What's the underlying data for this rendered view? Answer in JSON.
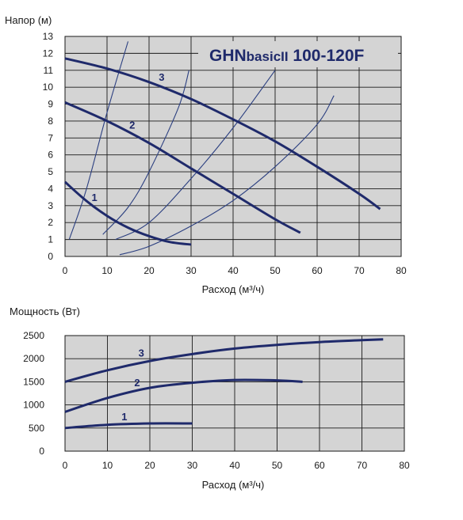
{
  "colors": {
    "plot_bg": "#d4d4d4",
    "grid": "#1a1a1a",
    "curve": "#1f2a6b",
    "system_curve": "#2b3f80"
  },
  "chart_data": [
    {
      "type": "line",
      "title_model": "GHN",
      "title_variant": "basicII",
      "title_size": " 100-120F",
      "ylabel": "Напор (м)",
      "xlabel": "Расход (м³/ч)",
      "xlim": [
        0,
        80
      ],
      "ylim": [
        0,
        13
      ],
      "xticks": [
        0,
        10,
        20,
        30,
        40,
        50,
        60,
        70,
        80
      ],
      "yticks": [
        0,
        1,
        2,
        3,
        4,
        5,
        6,
        7,
        8,
        9,
        10,
        11,
        12,
        13
      ],
      "grid": true,
      "series": [
        {
          "name": "1",
          "x": [
            0,
            5,
            10,
            15,
            20,
            25,
            30
          ],
          "y": [
            4.4,
            3.3,
            2.4,
            1.7,
            1.2,
            0.85,
            0.7
          ]
        },
        {
          "name": "2",
          "x": [
            0,
            10,
            20,
            30,
            40,
            50,
            56
          ],
          "y": [
            9.1,
            8.0,
            6.7,
            5.2,
            3.7,
            2.2,
            1.4
          ]
        },
        {
          "name": "3",
          "x": [
            0,
            10,
            20,
            30,
            40,
            50,
            60,
            70,
            75
          ],
          "y": [
            11.7,
            11.1,
            10.3,
            9.3,
            8.1,
            6.8,
            5.3,
            3.7,
            2.8
          ]
        }
      ],
      "system_curves": [
        {
          "x": [
            1,
            5,
            10,
            15
          ],
          "y": [
            1.0,
            3.9,
            8.5,
            12.7
          ]
        },
        {
          "x": [
            9,
            15,
            20,
            27,
            29.5
          ],
          "y": [
            1.3,
            2.9,
            5.0,
            8.8,
            11.0
          ]
        },
        {
          "x": [
            12,
            20,
            30,
            40,
            50
          ],
          "y": [
            1.0,
            2.0,
            4.6,
            7.6,
            11.0
          ]
        },
        {
          "x": [
            13,
            20,
            30,
            40,
            50,
            60,
            64
          ],
          "y": [
            0.1,
            0.6,
            1.8,
            3.3,
            5.3,
            7.8,
            9.5
          ]
        }
      ]
    },
    {
      "type": "line",
      "ylabel": "Мощность (Вт)",
      "xlabel": "Расход (м³/ч)",
      "xlim": [
        0,
        80
      ],
      "ylim": [
        0,
        2500
      ],
      "xticks": [
        0,
        10,
        20,
        30,
        40,
        50,
        60,
        70,
        80
      ],
      "yticks": [
        0,
        500,
        1000,
        1500,
        2000,
        2500
      ],
      "grid": true,
      "series": [
        {
          "name": "1",
          "x": [
            0,
            10,
            20,
            30
          ],
          "y": [
            500,
            570,
            600,
            600
          ]
        },
        {
          "name": "2",
          "x": [
            0,
            10,
            20,
            30,
            40,
            50,
            56
          ],
          "y": [
            850,
            1150,
            1370,
            1480,
            1540,
            1530,
            1500
          ]
        },
        {
          "name": "3",
          "x": [
            0,
            10,
            20,
            30,
            40,
            50,
            60,
            70,
            75
          ],
          "y": [
            1500,
            1750,
            1950,
            2100,
            2220,
            2300,
            2360,
            2400,
            2420
          ]
        }
      ]
    }
  ]
}
